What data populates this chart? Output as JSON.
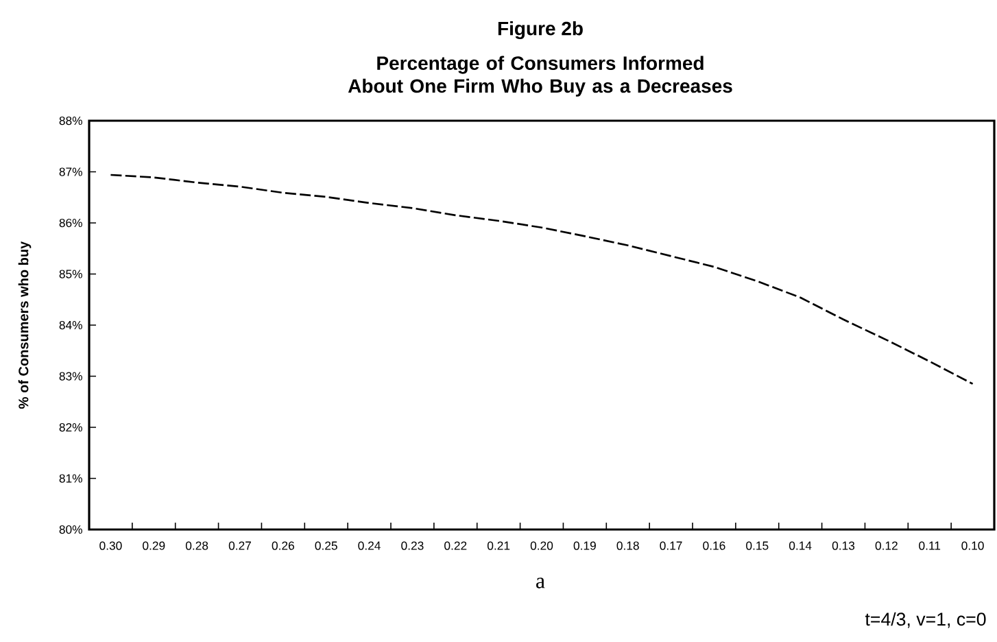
{
  "chart_data": {
    "type": "line",
    "title": "Figure 2b",
    "subtitle": "Percentage of Consumers Informed About One Firm Who Buy as a Decreases",
    "xlabel": "a",
    "ylabel": "% of Consumers who buy",
    "categories": [
      "0.30",
      "0.29",
      "0.28",
      "0.27",
      "0.26",
      "0.25",
      "0.24",
      "0.23",
      "0.22",
      "0.21",
      "0.20",
      "0.19",
      "0.18",
      "0.17",
      "0.16",
      "0.15",
      "0.14",
      "0.13",
      "0.12",
      "0.11",
      "0.10"
    ],
    "series": [
      {
        "color": "#000000",
        "values": [
          86.94,
          86.89,
          86.79,
          86.71,
          86.59,
          86.51,
          86.39,
          86.29,
          86.15,
          86.04,
          85.91,
          85.74,
          85.56,
          85.35,
          85.14,
          84.86,
          84.54,
          84.11,
          83.71,
          83.29,
          82.85
        ]
      }
    ],
    "ylim": [
      80,
      88
    ],
    "yticks": [
      {
        "value": 80,
        "label": "80%"
      },
      {
        "value": 81,
        "label": "81%"
      },
      {
        "value": 82,
        "label": "82%"
      },
      {
        "value": 83,
        "label": "83%"
      },
      {
        "value": 84,
        "label": "84%"
      },
      {
        "value": 85,
        "label": "85%"
      },
      {
        "value": 86,
        "label": "86%"
      },
      {
        "value": 87,
        "label": "87%"
      },
      {
        "value": 88,
        "label": "88%"
      }
    ],
    "line_style": "dashed",
    "marker": "none",
    "annotations": [
      "t=4/3, v=1, c=0"
    ]
  }
}
